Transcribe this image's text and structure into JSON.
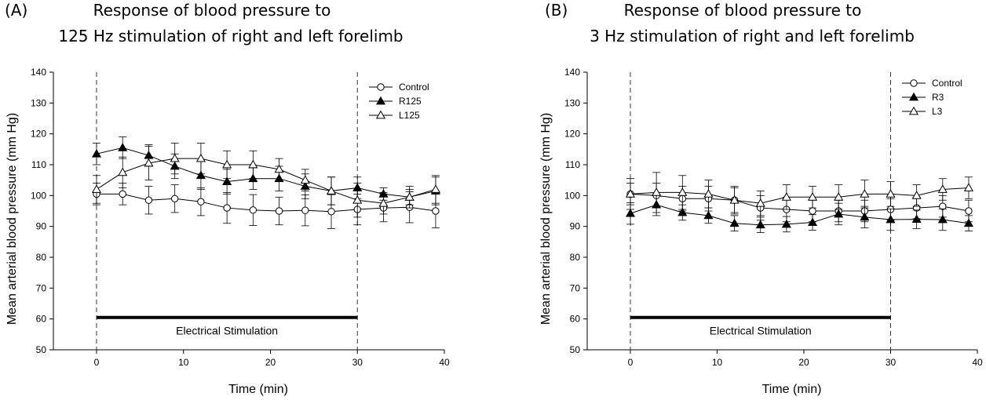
{
  "chart_data": [
    {
      "type": "line",
      "panel": "(A)",
      "title_line1": "Response of blood pressure to",
      "title_line2": "125 Hz stimulation of right and left forelimb",
      "xlabel": "Time (min)",
      "ylabel": "Mean arterial blood pressure (mm Hg)",
      "xlim": [
        -5,
        40
      ],
      "ylim": [
        50,
        140
      ],
      "xticks": [
        0,
        10,
        20,
        30,
        40
      ],
      "yticks": [
        50,
        60,
        70,
        80,
        90,
        100,
        110,
        120,
        130,
        140
      ],
      "grid": false,
      "legend_position": "top-right",
      "stim_label": "Electrical Stimulation",
      "stim_level": 60.5,
      "stim_range": [
        0,
        30
      ],
      "series": [
        {
          "name": "Control",
          "marker": "open-circle",
          "x": [
            0,
            3,
            6,
            9,
            12,
            15,
            18,
            21,
            24,
            27,
            30,
            33,
            36,
            39
          ],
          "y": [
            100.5,
            100.5,
            98.5,
            99,
            98,
            96,
            95.3,
            95,
            95.2,
            94.8,
            95.5,
            96,
            96.2,
            95
          ],
          "err": [
            3.5,
            3.5,
            4.5,
            4.5,
            4.5,
            5,
            5,
            4.5,
            5,
            5.5,
            5,
            4.5,
            5,
            5.5
          ]
        },
        {
          "name": "R125",
          "marker": "filled-triangle",
          "x": [
            0,
            3,
            6,
            9,
            12,
            15,
            18,
            21,
            24,
            27,
            30,
            33,
            36,
            39
          ],
          "y": [
            113.5,
            115.5,
            113,
            109.5,
            106.5,
            104.5,
            105.5,
            105.5,
            103,
            101.5,
            102.5,
            100.5,
            99.5,
            101.5
          ],
          "err": [
            3.5,
            3.5,
            3.5,
            4,
            4.5,
            4,
            3.5,
            4,
            4,
            4.5,
            3.5,
            2,
            2.5,
            4.5
          ]
        },
        {
          "name": "L125",
          "marker": "open-triangle",
          "x": [
            0,
            3,
            6,
            9,
            12,
            15,
            18,
            21,
            24,
            27,
            30,
            33,
            36,
            39
          ],
          "y": [
            102,
            107.5,
            110.5,
            112,
            112,
            110,
            110,
            108.5,
            105,
            101.5,
            98.5,
            97.5,
            99.5,
            102
          ],
          "err": [
            4.5,
            5,
            5.5,
            5,
            5,
            4.5,
            4.5,
            3.5,
            3.5,
            4.5,
            5.5,
            3.5,
            3.5,
            4.5
          ]
        }
      ]
    },
    {
      "type": "line",
      "panel": "(B)",
      "title_line1": "Response of blood pressure to",
      "title_line2": "3 Hz stimulation of right and left forelimb",
      "xlabel": "Time (min)",
      "ylabel": "Mean arterial blood pressure (mm Hg)",
      "xlim": [
        -5,
        40
      ],
      "ylim": [
        50,
        140
      ],
      "xticks": [
        0,
        10,
        20,
        30,
        40
      ],
      "yticks": [
        50,
        60,
        70,
        80,
        90,
        100,
        110,
        120,
        130,
        140
      ],
      "grid": false,
      "legend_position": "top-right",
      "stim_label": "Electrical Stimulation",
      "stim_level": 60.5,
      "stim_range": [
        0,
        30
      ],
      "series": [
        {
          "name": "Control",
          "marker": "open-circle",
          "x": [
            0,
            3,
            6,
            9,
            12,
            15,
            18,
            21,
            24,
            27,
            30,
            33,
            36,
            39
          ],
          "y": [
            100.5,
            100,
            99,
            99,
            98.5,
            96,
            95.5,
            95,
            95,
            95,
            95.5,
            96,
            96.5,
            95
          ],
          "err": [
            3.5,
            4,
            4,
            4,
            4,
            4,
            4,
            3.5,
            3.5,
            3.5,
            3.5,
            3.5,
            3.5,
            3.5
          ]
        },
        {
          "name": "R3",
          "marker": "filled-triangle",
          "x": [
            0,
            3,
            6,
            9,
            12,
            15,
            18,
            21,
            24,
            27,
            30,
            33,
            36,
            39
          ],
          "y": [
            94.2,
            97,
            94.5,
            93.5,
            91,
            90.5,
            90.7,
            91.3,
            94,
            93,
            92.2,
            92.3,
            92.2,
            91
          ],
          "err": [
            3.5,
            3.5,
            2.5,
            2.5,
            2.5,
            2.5,
            2.5,
            2.5,
            3.5,
            3.5,
            3.5,
            3,
            3.5,
            2.5
          ]
        },
        {
          "name": "L3",
          "marker": "open-triangle",
          "x": [
            0,
            3,
            6,
            9,
            12,
            15,
            18,
            21,
            24,
            27,
            30,
            33,
            36,
            39
          ],
          "y": [
            100.5,
            101,
            101,
            100.5,
            98.5,
            97.5,
            99.5,
            99.5,
            99.5,
            100.5,
            100.5,
            100,
            102,
            102.5
          ],
          "err": [
            5,
            6.5,
            5.5,
            4.5,
            4.5,
            4,
            4,
            3.5,
            4,
            4.5,
            4,
            3.5,
            3.5,
            3.5
          ]
        }
      ]
    }
  ]
}
